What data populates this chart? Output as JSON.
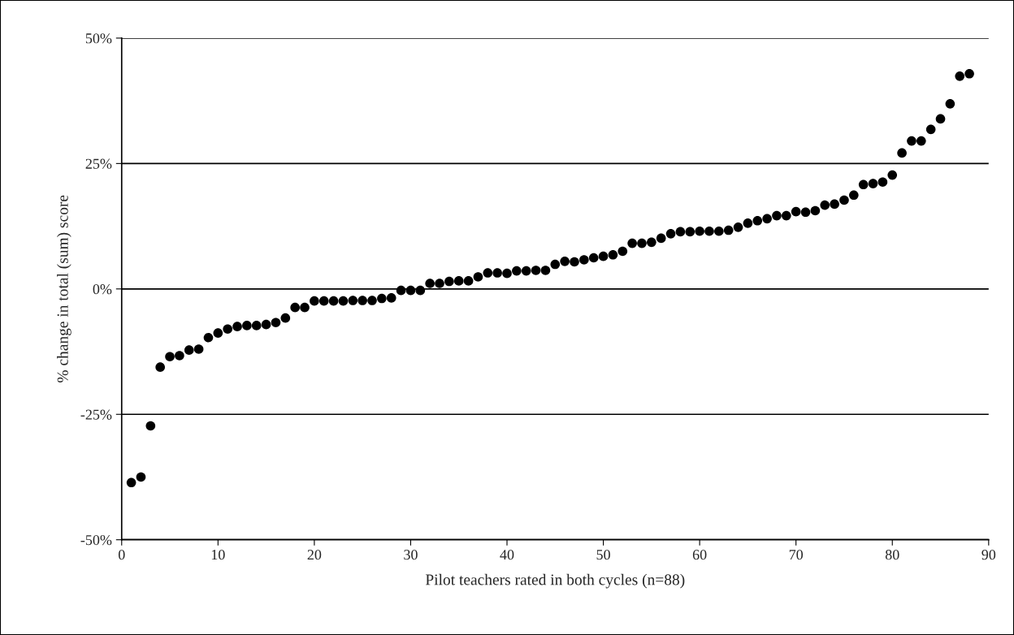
{
  "chart_data": {
    "type": "scatter",
    "xlabel": "Pilot teachers rated in both cycles (n=88)",
    "ylabel": "% change in total (sum) score",
    "x": [
      1,
      2,
      3,
      4,
      5,
      6,
      7,
      8,
      9,
      10,
      11,
      12,
      13,
      14,
      15,
      16,
      17,
      18,
      19,
      20,
      21,
      22,
      23,
      24,
      25,
      26,
      27,
      28,
      29,
      30,
      31,
      32,
      33,
      34,
      35,
      36,
      37,
      38,
      39,
      40,
      41,
      42,
      43,
      44,
      45,
      46,
      47,
      48,
      49,
      50,
      51,
      52,
      53,
      54,
      55,
      56,
      57,
      58,
      59,
      60,
      61,
      62,
      63,
      64,
      65,
      66,
      67,
      68,
      69,
      70,
      71,
      72,
      73,
      74,
      75,
      76,
      77,
      78,
      79,
      80,
      81,
      82,
      83,
      84,
      85,
      86,
      87,
      88
    ],
    "series": [
      {
        "color": "#000000",
        "values": [
          -38.6,
          -37.5,
          -27.3,
          -15.6,
          -13.5,
          -13.3,
          -12.2,
          -12.0,
          -9.7,
          -8.8,
          -8.0,
          -7.5,
          -7.3,
          -7.3,
          -7.1,
          -6.7,
          -5.8,
          -3.7,
          -3.7,
          -2.4,
          -2.4,
          -2.4,
          -2.4,
          -2.3,
          -2.3,
          -2.3,
          -1.9,
          -1.8,
          -0.3,
          -0.3,
          -0.3,
          1.1,
          1.1,
          1.5,
          1.6,
          1.6,
          2.4,
          3.2,
          3.2,
          3.1,
          3.6,
          3.6,
          3.7,
          3.7,
          4.9,
          5.5,
          5.4,
          5.8,
          6.2,
          6.5,
          6.8,
          7.5,
          9.1,
          9.1,
          9.3,
          10.1,
          11.0,
          11.4,
          11.4,
          11.5,
          11.5,
          11.5,
          11.7,
          12.3,
          13.1,
          13.6,
          14.0,
          14.6,
          14.6,
          15.4,
          15.3,
          15.6,
          16.7,
          16.9,
          17.7,
          18.7,
          20.8,
          21.0,
          21.3,
          22.7,
          27.1,
          29.5,
          29.5,
          31.8,
          33.9,
          36.9,
          42.4,
          42.9
        ]
      }
    ],
    "xlim": [
      0,
      90
    ],
    "xticks": [
      0,
      10,
      20,
      30,
      40,
      50,
      60,
      70,
      80,
      90
    ],
    "ylim": [
      -50,
      50
    ],
    "yticks": [
      {
        "value": -50,
        "label": "-50%"
      },
      {
        "value": -25,
        "label": "-25%"
      },
      {
        "value": 0,
        "label": "0%"
      },
      {
        "value": 25,
        "label": "25%"
      },
      {
        "value": 50,
        "label": "50%"
      }
    ],
    "grid": "y",
    "marker": "circle",
    "legend": false
  }
}
